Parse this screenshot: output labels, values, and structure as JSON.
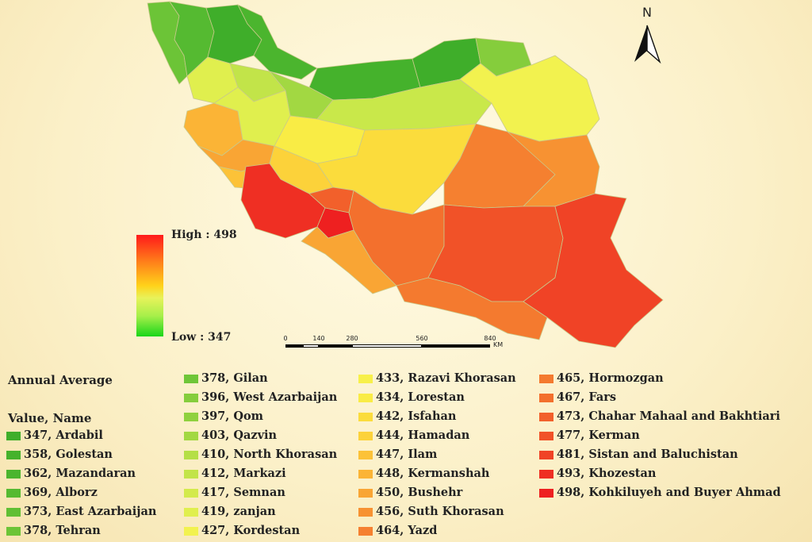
{
  "north": {
    "label": "N"
  },
  "colorbar": {
    "high_label": "High : 498",
    "low_label": "Low : 347"
  },
  "scale": {
    "ticks": [
      "0",
      "140",
      "280",
      "560",
      "840"
    ],
    "unit": "KM"
  },
  "legend": {
    "title": "Annual Average",
    "subtitle": "Value, Name",
    "items": [
      {
        "label": "347, Ardabil",
        "color": "#3fae2a"
      },
      {
        "label": "358, Golestan",
        "color": "#45b22c"
      },
      {
        "label": "362, Mazandaran",
        "color": "#4bb52e"
      },
      {
        "label": "369, Alborz",
        "color": "#55ba31"
      },
      {
        "label": "373, East Azarbaijan",
        "color": "#60bf34"
      },
      {
        "label": "378, Tehran",
        "color": "#6cc437"
      },
      {
        "label": "378, Gilan",
        "color": "#6fc638"
      },
      {
        "label": "396, West Azarbaijan",
        "color": "#85cd3c"
      },
      {
        "label": "397, Qom",
        "color": "#8fd13e"
      },
      {
        "label": "403, Qazvin",
        "color": "#a2d842"
      },
      {
        "label": "410, North Khorasan",
        "color": "#b5df46"
      },
      {
        "label": "412, Markazi",
        "color": "#c2e449"
      },
      {
        "label": "417, Semnan",
        "color": "#d3ea4c"
      },
      {
        "label": "419, zanjan",
        "color": "#e0ef4e"
      },
      {
        "label": "427, Kordestan",
        "color": "#f2f24f"
      },
      {
        "label": "433, Razavi Khorasan",
        "color": "#f7f04a"
      },
      {
        "label": "434, Lorestan",
        "color": "#f9ec45"
      },
      {
        "label": "442, Isfahan",
        "color": "#fbdc3c"
      },
      {
        "label": "444, Hamadan",
        "color": "#fcd23a"
      },
      {
        "label": "447, Ilam",
        "color": "#fcc238"
      },
      {
        "label": "448, Kermanshah",
        "color": "#fbb436"
      },
      {
        "label": "450, Bushehr",
        "color": "#f9a534"
      },
      {
        "label": "456, Suth Khorasan",
        "color": "#f79232"
      },
      {
        "label": "464, Yazd",
        "color": "#f58030"
      },
      {
        "label": "465, Hormozgan",
        "color": "#f47a2f"
      },
      {
        "label": "467, Fars",
        "color": "#f3702d"
      },
      {
        "label": "473, Chahar Mahaal and Bakhtiari",
        "color": "#f2602b"
      },
      {
        "label": "477, Kerman",
        "color": "#f15228"
      },
      {
        "label": "481, Sistan and Baluchistan",
        "color": "#f04326"
      },
      {
        "label": "493, Khozestan",
        "color": "#ef2f23"
      },
      {
        "label": "498, Kohkiluyeh and Buyer Ahmad",
        "color": "#ee2020"
      }
    ]
  }
}
